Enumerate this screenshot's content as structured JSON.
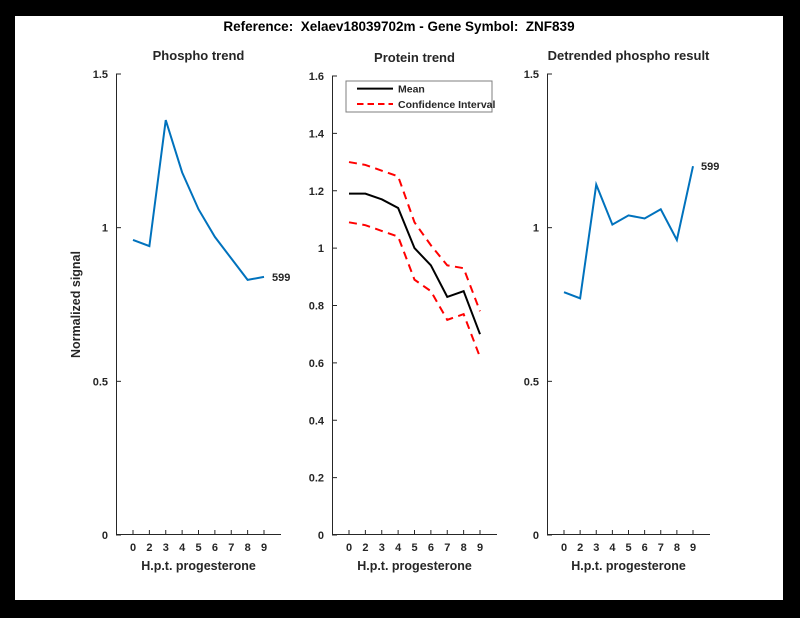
{
  "title": "Reference:  Xelaev18039702m - Gene Symbol:  ZNF839",
  "colors": {
    "axis": "#262626",
    "blue": "#0072BD",
    "red": "#FF0000",
    "black": "#000000",
    "legend_border": "#7f7f7f"
  },
  "chart_data": [
    {
      "type": "line",
      "name": "phospho-trend",
      "title": "Phospho trend",
      "xlabel": "H.p.t. progesterone",
      "ylabel": "Normalized signal",
      "x_tick_labels": [
        "0",
        "2",
        "3",
        "4",
        "5",
        "6",
        "7",
        "8",
        "9"
      ],
      "ylim": [
        0,
        1.5
      ],
      "yticks": [
        0,
        0.5,
        1,
        1.5
      ],
      "grid": false,
      "end_label": "599",
      "series": [
        {
          "name": "phospho-signal",
          "color": "#0072BD",
          "dashed": false,
          "values": [
            0.96,
            0.94,
            1.35,
            1.18,
            1.06,
            0.97,
            0.9,
            0.83,
            0.84
          ]
        }
      ]
    },
    {
      "type": "line",
      "name": "protein-trend",
      "title": "Protein trend",
      "xlabel": "H.p.t. progesterone",
      "ylabel": "",
      "x_tick_labels": [
        "0",
        "2",
        "3",
        "4",
        "5",
        "6",
        "7",
        "8",
        "9"
      ],
      "ylim": [
        0,
        1.6
      ],
      "yticks": [
        0,
        0.2,
        0.4,
        0.6,
        0.8,
        1,
        1.2,
        1.4,
        1.6
      ],
      "grid": false,
      "legend": {
        "position": "top-left",
        "entries": [
          {
            "label": "Mean",
            "color": "#000000",
            "dashed": false
          },
          {
            "label": "Confidence Interval",
            "color": "#FF0000",
            "dashed": true
          }
        ]
      },
      "series": [
        {
          "name": "ci-upper",
          "color": "#FF0000",
          "dashed": true,
          "values": [
            1.3,
            1.29,
            1.27,
            1.25,
            1.09,
            1.01,
            0.94,
            0.93,
            0.78
          ]
        },
        {
          "name": "ci-lower",
          "color": "#FF0000",
          "dashed": true,
          "values": [
            1.09,
            1.08,
            1.06,
            1.04,
            0.89,
            0.85,
            0.75,
            0.77,
            0.62
          ]
        },
        {
          "name": "mean",
          "color": "#000000",
          "dashed": false,
          "values": [
            1.19,
            1.19,
            1.17,
            1.14,
            1.0,
            0.94,
            0.83,
            0.85,
            0.7
          ]
        }
      ]
    },
    {
      "type": "line",
      "name": "detrended-phospho-result",
      "title": "Detrended phospho result",
      "xlabel": "H.p.t. progesterone",
      "ylabel": "",
      "x_tick_labels": [
        "0",
        "2",
        "3",
        "4",
        "5",
        "6",
        "7",
        "8",
        "9"
      ],
      "ylim": [
        0,
        1.5
      ],
      "yticks": [
        0,
        0.5,
        1,
        1.5
      ],
      "grid": false,
      "end_label": "599",
      "series": [
        {
          "name": "detrended-signal",
          "color": "#0072BD",
          "dashed": false,
          "values": [
            0.79,
            0.77,
            1.14,
            1.01,
            1.04,
            1.03,
            1.06,
            0.96,
            1.2
          ]
        }
      ]
    }
  ]
}
